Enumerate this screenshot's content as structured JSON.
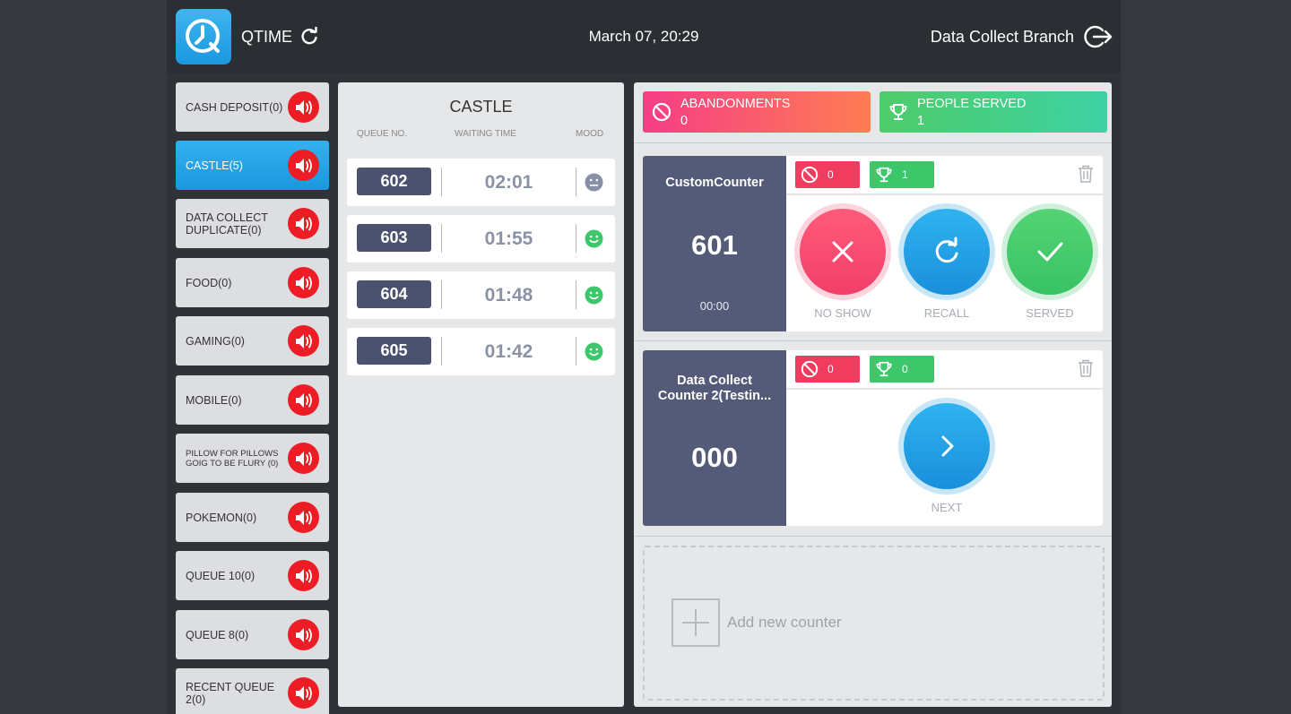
{
  "header": {
    "app_name": "QTIME",
    "datetime": "March 07, 20:29",
    "branch": "Data Collect Branch"
  },
  "sidebar": {
    "items": [
      {
        "label": "CASH DEPOSIT(0)",
        "active": false
      },
      {
        "label": "CASTLE(5)",
        "active": true
      },
      {
        "label": "DATA COLLECT DUPLICATE(0)",
        "active": false
      },
      {
        "label": "FOOD(0)",
        "active": false
      },
      {
        "label": "GAMING(0)",
        "active": false
      },
      {
        "label": "MOBILE(0)",
        "active": false
      },
      {
        "label": "PILLOW FOR PILLOWS GOIG TO BE FLURY (0)",
        "active": false
      },
      {
        "label": "POKEMON(0)",
        "active": false
      },
      {
        "label": "QUEUE 10(0)",
        "active": false
      },
      {
        "label": "QUEUE 8(0)",
        "active": false
      },
      {
        "label": "RECENT QUEUE 2(0)",
        "active": false
      }
    ]
  },
  "queue": {
    "title": "CASTLE",
    "columns": {
      "number": "QUEUE NO.",
      "waiting": "WAITING TIME",
      "mood": "MOOD"
    },
    "tickets": [
      {
        "number": "602",
        "time": "02:01",
        "mood": "neutral-face-icon"
      },
      {
        "number": "603",
        "time": "01:55",
        "mood": "happy-face-icon"
      },
      {
        "number": "604",
        "time": "01:48",
        "mood": "happy-face-icon"
      },
      {
        "number": "605",
        "time": "01:42",
        "mood": "happy-face-icon"
      }
    ]
  },
  "stats": {
    "abandonments": {
      "label": "ABANDONMENTS",
      "value": "0"
    },
    "people_served": {
      "label": "PEOPLE SERVED",
      "value": "1"
    }
  },
  "counters": [
    {
      "name": "CustomCounter",
      "number": "601",
      "time": "00:00",
      "abandon_count": "0",
      "served_count": "1",
      "actions": {
        "no_show": "NO SHOW",
        "recall": "RECALL",
        "served": "SERVED"
      }
    },
    {
      "name_line1": "Data Collect",
      "name_line2": "Counter 2(Testin...",
      "number": "000",
      "abandon_count": "0",
      "served_count": "0",
      "actions": {
        "next": "NEXT"
      }
    }
  ],
  "add_counter": {
    "label": "Add new counter"
  },
  "colors": {
    "accent_blue": "#1a97df",
    "counter_panel": "#545b78",
    "speaker_red": "#ee1c25",
    "ticket_badge": "#4a5270"
  }
}
